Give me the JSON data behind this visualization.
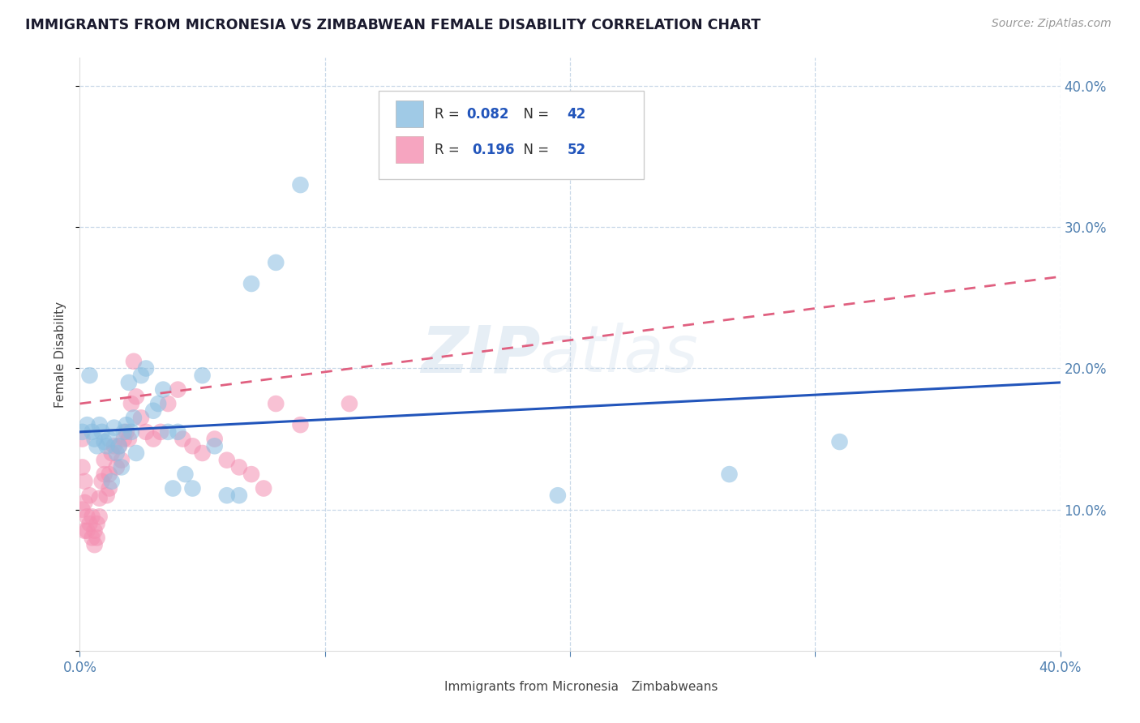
{
  "title": "IMMIGRANTS FROM MICRONESIA VS ZIMBABWEAN FEMALE DISABILITY CORRELATION CHART",
  "source": "Source: ZipAtlas.com",
  "ylabel": "Female Disability",
  "xlim": [
    0.0,
    0.4
  ],
  "ylim": [
    0.0,
    0.42
  ],
  "blue_color": "#89bde0",
  "pink_color": "#f48fb1",
  "blue_line_color": "#2255bb",
  "pink_line_color": "#e06080",
  "title_color": "#1a1a2e",
  "grid_color": "#c8d8e8",
  "watermark": "ZIPatlas",
  "blue_r": 0.082,
  "blue_n": 42,
  "pink_r": 0.196,
  "pink_n": 52,
  "blue_line_y0": 0.155,
  "blue_line_y1": 0.19,
  "pink_line_y0": 0.175,
  "pink_line_y1": 0.265,
  "blue_scatter_x": [
    0.001,
    0.003,
    0.004,
    0.005,
    0.006,
    0.007,
    0.008,
    0.009,
    0.01,
    0.011,
    0.012,
    0.013,
    0.014,
    0.015,
    0.016,
    0.017,
    0.018,
    0.019,
    0.02,
    0.021,
    0.022,
    0.023,
    0.025,
    0.027,
    0.03,
    0.032,
    0.034,
    0.036,
    0.038,
    0.04,
    0.043,
    0.046,
    0.05,
    0.055,
    0.06,
    0.065,
    0.07,
    0.08,
    0.09,
    0.195,
    0.265,
    0.31
  ],
  "blue_scatter_y": [
    0.155,
    0.16,
    0.195,
    0.155,
    0.15,
    0.145,
    0.16,
    0.155,
    0.148,
    0.145,
    0.15,
    0.12,
    0.158,
    0.14,
    0.145,
    0.13,
    0.155,
    0.16,
    0.19,
    0.155,
    0.165,
    0.14,
    0.195,
    0.2,
    0.17,
    0.175,
    0.185,
    0.155,
    0.115,
    0.155,
    0.125,
    0.115,
    0.195,
    0.145,
    0.11,
    0.11,
    0.26,
    0.275,
    0.33,
    0.11,
    0.125,
    0.148
  ],
  "pink_scatter_x": [
    0.001,
    0.001,
    0.001,
    0.002,
    0.002,
    0.002,
    0.003,
    0.003,
    0.004,
    0.004,
    0.005,
    0.005,
    0.006,
    0.006,
    0.007,
    0.007,
    0.008,
    0.008,
    0.009,
    0.01,
    0.01,
    0.011,
    0.012,
    0.012,
    0.013,
    0.014,
    0.015,
    0.016,
    0.017,
    0.018,
    0.019,
    0.02,
    0.021,
    0.022,
    0.023,
    0.025,
    0.027,
    0.03,
    0.033,
    0.036,
    0.04,
    0.042,
    0.046,
    0.05,
    0.055,
    0.06,
    0.065,
    0.07,
    0.075,
    0.08,
    0.09,
    0.11
  ],
  "pink_scatter_y": [
    0.15,
    0.13,
    0.1,
    0.12,
    0.105,
    0.085,
    0.085,
    0.095,
    0.11,
    0.09,
    0.08,
    0.095,
    0.085,
    0.075,
    0.08,
    0.09,
    0.095,
    0.108,
    0.12,
    0.135,
    0.125,
    0.11,
    0.115,
    0.125,
    0.14,
    0.145,
    0.13,
    0.145,
    0.135,
    0.15,
    0.155,
    0.15,
    0.175,
    0.205,
    0.18,
    0.165,
    0.155,
    0.15,
    0.155,
    0.175,
    0.185,
    0.15,
    0.145,
    0.14,
    0.15,
    0.135,
    0.13,
    0.125,
    0.115,
    0.175,
    0.16,
    0.175
  ],
  "bottom_legend_blue": "Immigrants from Micronesia",
  "bottom_legend_pink": "Zimbabweans"
}
